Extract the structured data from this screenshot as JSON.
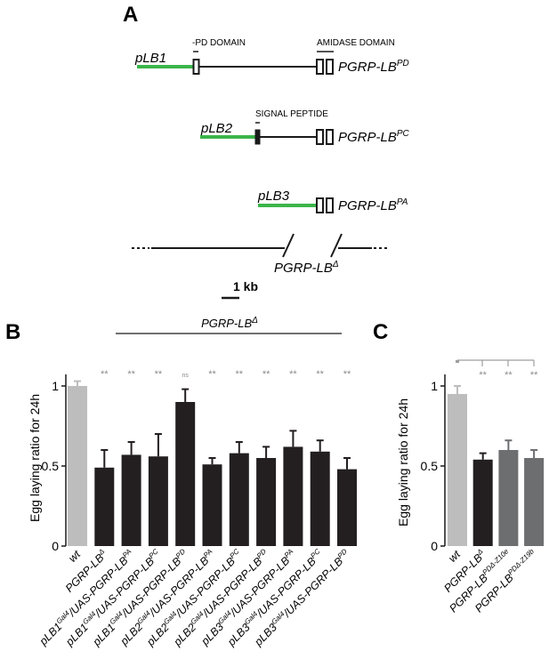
{
  "panel_a": {
    "letter": "A",
    "domain_labels": {
      "pd": "-PD DOMAIN",
      "amidase": "AMIDASE DOMAIN",
      "signal": "SIGNAL PEPTIDE"
    },
    "constructs": [
      {
        "promoter": "pLB1",
        "gene": "PGRP-LB",
        "gene_sup": "PD"
      },
      {
        "promoter": "pLB2",
        "gene": "PGRP-LB",
        "gene_sup": "PC"
      },
      {
        "promoter": "pLB3",
        "gene": "PGRP-LB",
        "gene_sup": "PA"
      }
    ],
    "deletion": {
      "gene": "PGRP-LB",
      "gene_sup": "Δ"
    },
    "scale_bar_label": "1 kb",
    "colors": {
      "promoter": "#3bb54a",
      "line": "#1a1a1a"
    }
  },
  "chart_data": [
    {
      "panel": "B",
      "type": "bar",
      "ylabel": "Egg laying ratio for 24h",
      "ylim": [
        0,
        1.05
      ],
      "yticks": [
        "0",
        "0.5",
        "1"
      ],
      "bracket_label": {
        "base": "PGRP-LB",
        "sup": "Δ"
      },
      "categories": [
        {
          "base": "wt",
          "sup1": "",
          "mid": "",
          "sup2": ""
        },
        {
          "base": "PGRP-LB",
          "sup1": "Δ",
          "mid": "",
          "sup2": ""
        },
        {
          "base": "pLB1",
          "sup1": "Gal4",
          "mid": "/UAS-PGRP-LB",
          "sup2": "PA"
        },
        {
          "base": "pLB1",
          "sup1": "Gal4",
          "mid": "/UAS-PGRP-LB",
          "sup2": "PC"
        },
        {
          "base": "pLB1",
          "sup1": "Gal4",
          "mid": "/UAS-PGRP-LB",
          "sup2": "PD"
        },
        {
          "base": "pLB2",
          "sup1": "Gal4",
          "mid": "/UAS-PGRP-LB",
          "sup2": "PA"
        },
        {
          "base": "pLB2",
          "sup1": "Gal4",
          "mid": "/UAS-PGRP-LB",
          "sup2": "PC"
        },
        {
          "base": "pLB2",
          "sup1": "Gal4",
          "mid": "/UAS-PGRP-LB",
          "sup2": "PD"
        },
        {
          "base": "pLB3",
          "sup1": "Gal4",
          "mid": "/UAS-PGRP-LB",
          "sup2": "PA"
        },
        {
          "base": "pLB3",
          "sup1": "Gal4",
          "mid": "/UAS-PGRP-LB",
          "sup2": "PC"
        },
        {
          "base": "pLB3",
          "sup1": "Gal4",
          "mid": "/UAS-PGRP-LB",
          "sup2": "PD"
        }
      ],
      "values": [
        1.0,
        0.49,
        0.57,
        0.56,
        0.9,
        0.51,
        0.58,
        0.55,
        0.62,
        0.59,
        0.48
      ],
      "errors": [
        0.03,
        0.11,
        0.08,
        0.14,
        0.08,
        0.04,
        0.07,
        0.07,
        0.1,
        0.07,
        0.07
      ],
      "significance": [
        "",
        "**",
        "**",
        "**",
        "ns",
        "**",
        "**",
        "**",
        "**",
        "**",
        "**"
      ],
      "colors": [
        "#bdbdbd",
        "#231f20",
        "#231f20",
        "#231f20",
        "#231f20",
        "#231f20",
        "#231f20",
        "#231f20",
        "#231f20",
        "#231f20",
        "#231f20"
      ]
    },
    {
      "panel": "C",
      "type": "bar",
      "ylabel": "Egg laying ratio for 24h",
      "ylim": [
        0,
        1.05
      ],
      "yticks": [
        "0",
        "0.5",
        "1"
      ],
      "categories": [
        {
          "base": "wt",
          "sup1": ""
        },
        {
          "base": "PGRP-LB",
          "sup1": "Δ"
        },
        {
          "base": "PGRP-LB",
          "sup1": "PDΔ-Z10e"
        },
        {
          "base": "PGRP-LB",
          "sup1": "PDΔ-Z19b"
        }
      ],
      "values": [
        0.95,
        0.54,
        0.6,
        0.55
      ],
      "errors": [
        0.05,
        0.04,
        0.06,
        0.05
      ],
      "significance": [
        "",
        "**",
        "**",
        "**"
      ],
      "colors": [
        "#bdbdbd",
        "#231f20",
        "#6d6e70",
        "#6d6e70"
      ]
    }
  ]
}
